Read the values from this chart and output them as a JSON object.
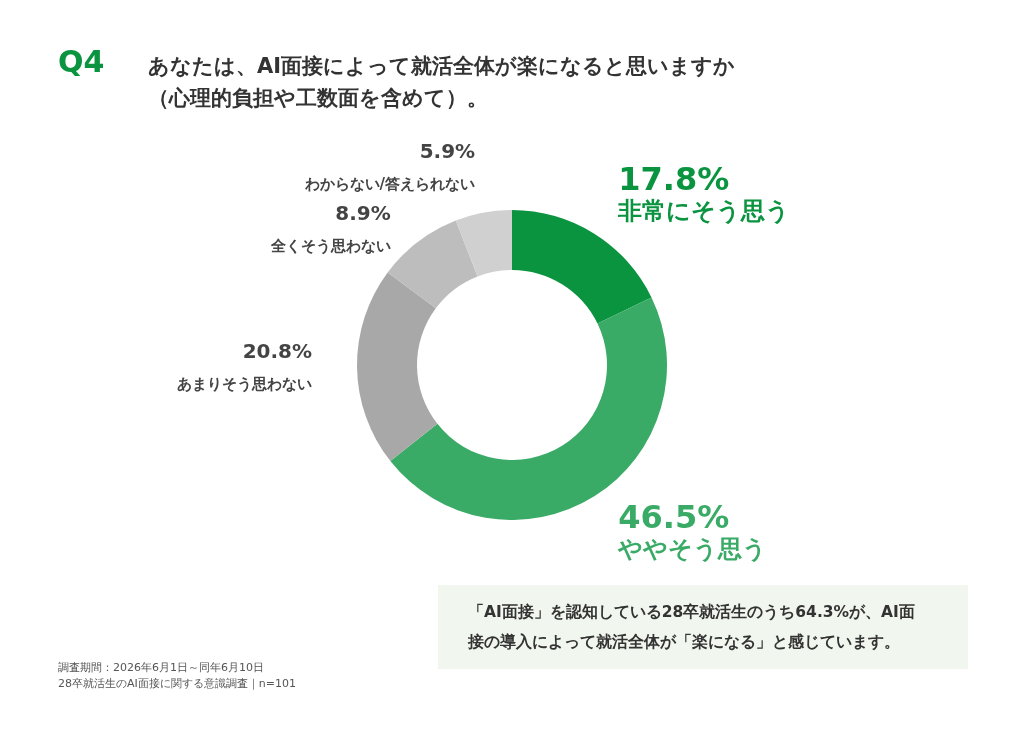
{
  "chart_data": {
    "type": "donut",
    "title": "Q4",
    "subtitle": "あなたは、AI面接によって就活全体が楽になると思いますか（心理的負担や工数面を含めて）。",
    "categories": [
      "非常にそう思う",
      "ややそう思う",
      "あまりそう思わない",
      "全くそう思わない",
      "わからない/答えられない"
    ],
    "values": [
      17.8,
      46.5,
      20.8,
      8.9,
      5.9
    ],
    "colors": [
      "#0a9440",
      "#3aab66",
      "#a8a8a8",
      "#bdbdbd",
      "#d0d0d0"
    ],
    "value_labels": [
      "17.8%",
      "46.5%",
      "20.8%",
      "8.9%",
      "5.9%"
    ],
    "annotations": [
      "「AI面接」を認知している28卒就活生のうち64.3%が、AI面接の導入によって就活全体が「楽になる」と感じています。",
      "調査期間：2026年6月1日～同年6月10日\n28卒就活生のAI面接に関する意識調査｜n=101"
    ]
  }
}
